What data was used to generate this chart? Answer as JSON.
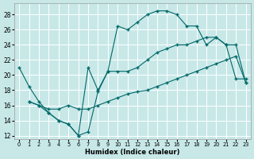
{
  "bg_color": "#c8e8e8",
  "grid_color": "#ffffff",
  "line_color": "#006868",
  "xlabel": "Humidex (Indice chaleur)",
  "xlim": [
    -0.5,
    23.5
  ],
  "ylim": [
    11.5,
    29.5
  ],
  "yticks": [
    12,
    14,
    16,
    18,
    20,
    22,
    24,
    26,
    28
  ],
  "xticks": [
    0,
    1,
    2,
    3,
    4,
    5,
    6,
    7,
    8,
    9,
    10,
    11,
    12,
    13,
    14,
    15,
    16,
    17,
    18,
    19,
    20,
    21,
    22,
    23
  ],
  "line1_x": [
    0,
    1,
    2,
    3,
    4,
    5,
    6,
    7,
    8,
    9,
    10,
    11,
    12,
    13,
    14,
    15,
    16,
    17,
    18,
    19,
    20,
    21,
    22,
    23
  ],
  "line1_y": [
    21,
    18.5,
    16.5,
    15.0,
    14.0,
    13.5,
    12.0,
    21.0,
    18.0,
    20.5,
    26.5,
    26.0,
    27.0,
    28.0,
    28.5,
    28.5,
    28.0,
    26.5,
    26.5,
    24.0,
    25.0,
    24.0,
    19.5,
    19.5
  ],
  "line2_x": [
    1,
    2,
    3,
    4,
    5,
    6,
    7,
    8,
    9,
    10,
    11,
    12,
    13,
    14,
    15,
    16,
    17,
    18,
    19,
    20,
    21,
    22,
    23
  ],
  "line2_y": [
    16.5,
    16.0,
    15.5,
    15.5,
    16.0,
    15.5,
    15.5,
    16.0,
    16.5,
    17.0,
    17.5,
    17.8,
    18.0,
    18.5,
    19.0,
    19.5,
    20.0,
    20.5,
    21.0,
    21.5,
    22.0,
    22.5,
    19.0
  ],
  "line3_x": [
    1,
    2,
    3,
    4,
    5,
    6,
    7,
    8,
    9,
    10,
    11,
    12,
    13,
    14,
    15,
    16,
    17,
    18,
    19,
    20,
    21,
    22,
    23
  ],
  "line3_y": [
    16.5,
    16.0,
    15.0,
    14.0,
    13.5,
    12.0,
    12.5,
    17.8,
    20.5,
    20.5,
    20.5,
    21.0,
    22.0,
    23.0,
    23.5,
    24.0,
    24.0,
    24.5,
    25.0,
    25.0,
    24.0,
    24.0,
    19.0
  ]
}
